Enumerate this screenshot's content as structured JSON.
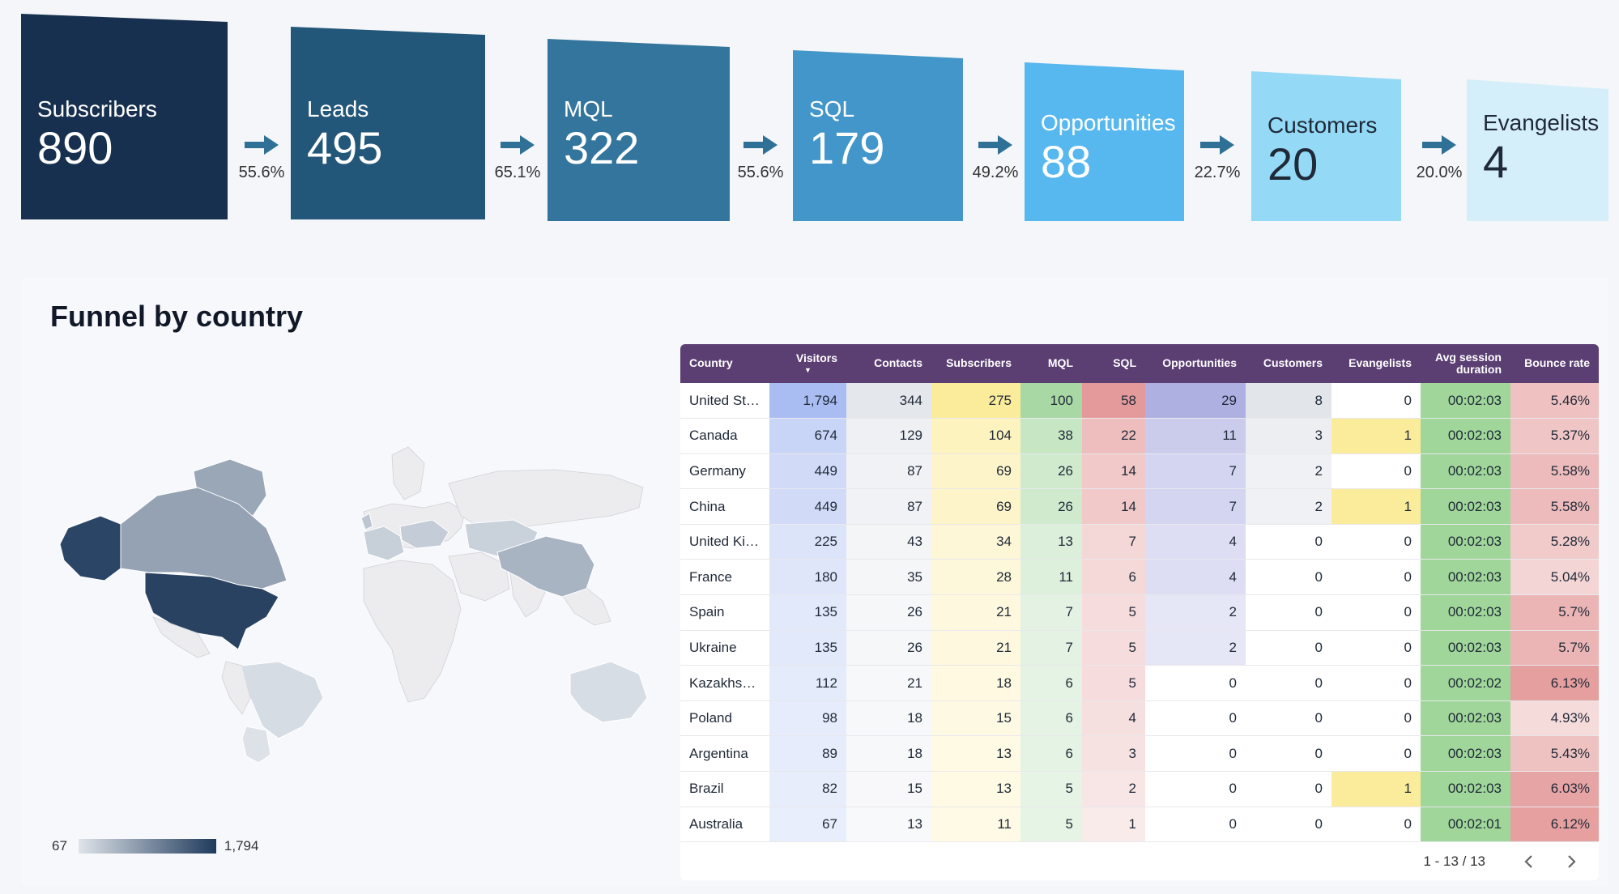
{
  "funnel": {
    "stages": [
      {
        "label": "Subscribers",
        "value": "890",
        "color": "#17304f",
        "text_color": "#ffffff"
      },
      {
        "label": "Leads",
        "value": "495",
        "color": "#23577a",
        "text_color": "#ffffff"
      },
      {
        "label": "MQL",
        "value": "322",
        "color": "#33759c",
        "text_color": "#ffffff"
      },
      {
        "label": "SQL",
        "value": "179",
        "color": "#4296c9",
        "text_color": "#ffffff"
      },
      {
        "label": "Opportunities",
        "value": "88",
        "color": "#57b7ef",
        "text_color": "#ffffff"
      },
      {
        "label": "Customers",
        "value": "20",
        "color": "#94d9f6",
        "text_color": "#1f2937"
      },
      {
        "label": "Evangelists",
        "value": "4",
        "color": "#d4eff9",
        "text_color": "#1f2937"
      }
    ],
    "conversions": [
      "55.6%",
      "65.1%",
      "55.6%",
      "49.2%",
      "22.7%",
      "20.0%"
    ],
    "arrow_color": "#2f7196",
    "arrow_icon": "arrow-right-icon"
  },
  "panel": {
    "title": "Funnel by country"
  },
  "map": {
    "legend_min": "67",
    "legend_max": "1,794",
    "legend_colors": [
      "#dfe4ea",
      "#1e3a5c"
    ],
    "highlighted_countries": [
      "United States",
      "Canada",
      "Alaska",
      "Greenland",
      "China",
      "Brazil",
      "Argentina",
      "Australia",
      "Kazakhstan",
      "Germany",
      "France",
      "Spain",
      "United Kingdom",
      "Poland",
      "Ukraine"
    ]
  },
  "table": {
    "columns": [
      "Country",
      "Visitors",
      "Contacts",
      "Subscribers",
      "MQL",
      "SQL",
      "Opportunities",
      "Customers",
      "Evangelists",
      "Avg session duration",
      "Bounce rate"
    ],
    "sorted_column": "Visitors",
    "sort_icon": "sort-down-icon",
    "rows": [
      [
        "United St…",
        "1,794",
        "344",
        "275",
        "100",
        "58",
        "29",
        "8",
        "0",
        "00:02:03",
        "5.46%"
      ],
      [
        "Canada",
        "674",
        "129",
        "104",
        "38",
        "22",
        "11",
        "3",
        "1",
        "00:02:03",
        "5.37%"
      ],
      [
        "Germany",
        "449",
        "87",
        "69",
        "26",
        "14",
        "7",
        "2",
        "0",
        "00:02:03",
        "5.58%"
      ],
      [
        "China",
        "449",
        "87",
        "69",
        "26",
        "14",
        "7",
        "2",
        "1",
        "00:02:03",
        "5.58%"
      ],
      [
        "United Ki…",
        "225",
        "43",
        "34",
        "13",
        "7",
        "4",
        "0",
        "0",
        "00:02:03",
        "5.28%"
      ],
      [
        "France",
        "180",
        "35",
        "28",
        "11",
        "6",
        "4",
        "0",
        "0",
        "00:02:03",
        "5.04%"
      ],
      [
        "Spain",
        "135",
        "26",
        "21",
        "7",
        "5",
        "2",
        "0",
        "0",
        "00:02:03",
        "5.7%"
      ],
      [
        "Ukraine",
        "135",
        "26",
        "21",
        "7",
        "5",
        "2",
        "0",
        "0",
        "00:02:03",
        "5.7%"
      ],
      [
        "Kazakhs…",
        "112",
        "21",
        "18",
        "6",
        "5",
        "0",
        "0",
        "0",
        "00:02:02",
        "6.13%"
      ],
      [
        "Poland",
        "98",
        "18",
        "15",
        "6",
        "4",
        "0",
        "0",
        "0",
        "00:02:03",
        "4.93%"
      ],
      [
        "Argentina",
        "89",
        "18",
        "13",
        "6",
        "3",
        "0",
        "0",
        "0",
        "00:02:03",
        "5.43%"
      ],
      [
        "Brazil",
        "82",
        "15",
        "13",
        "5",
        "2",
        "0",
        "0",
        "1",
        "00:02:03",
        "6.03%"
      ],
      [
        "Australia",
        "67",
        "13",
        "11",
        "5",
        "1",
        "0",
        "0",
        "0",
        "00:02:01",
        "6.12%"
      ]
    ],
    "heat_colors": {
      "Visitors": "#a9bdf2",
      "Contacts": "#e4e7ec",
      "Subscribers": "#fbec9c",
      "MQL": "#a8d8a4",
      "SQL": "#e49a9a",
      "Opportunities": "#aeb0e2",
      "Customers": "#e2e5ea",
      "Evangelists": "#fbec9c",
      "Avg session duration": "#9bd495",
      "Bounce rate": "#e59c9c"
    },
    "pagination": {
      "text": "1 - 13 / 13",
      "prev_icon": "chevron-left-icon",
      "next_icon": "chevron-right-icon"
    }
  }
}
